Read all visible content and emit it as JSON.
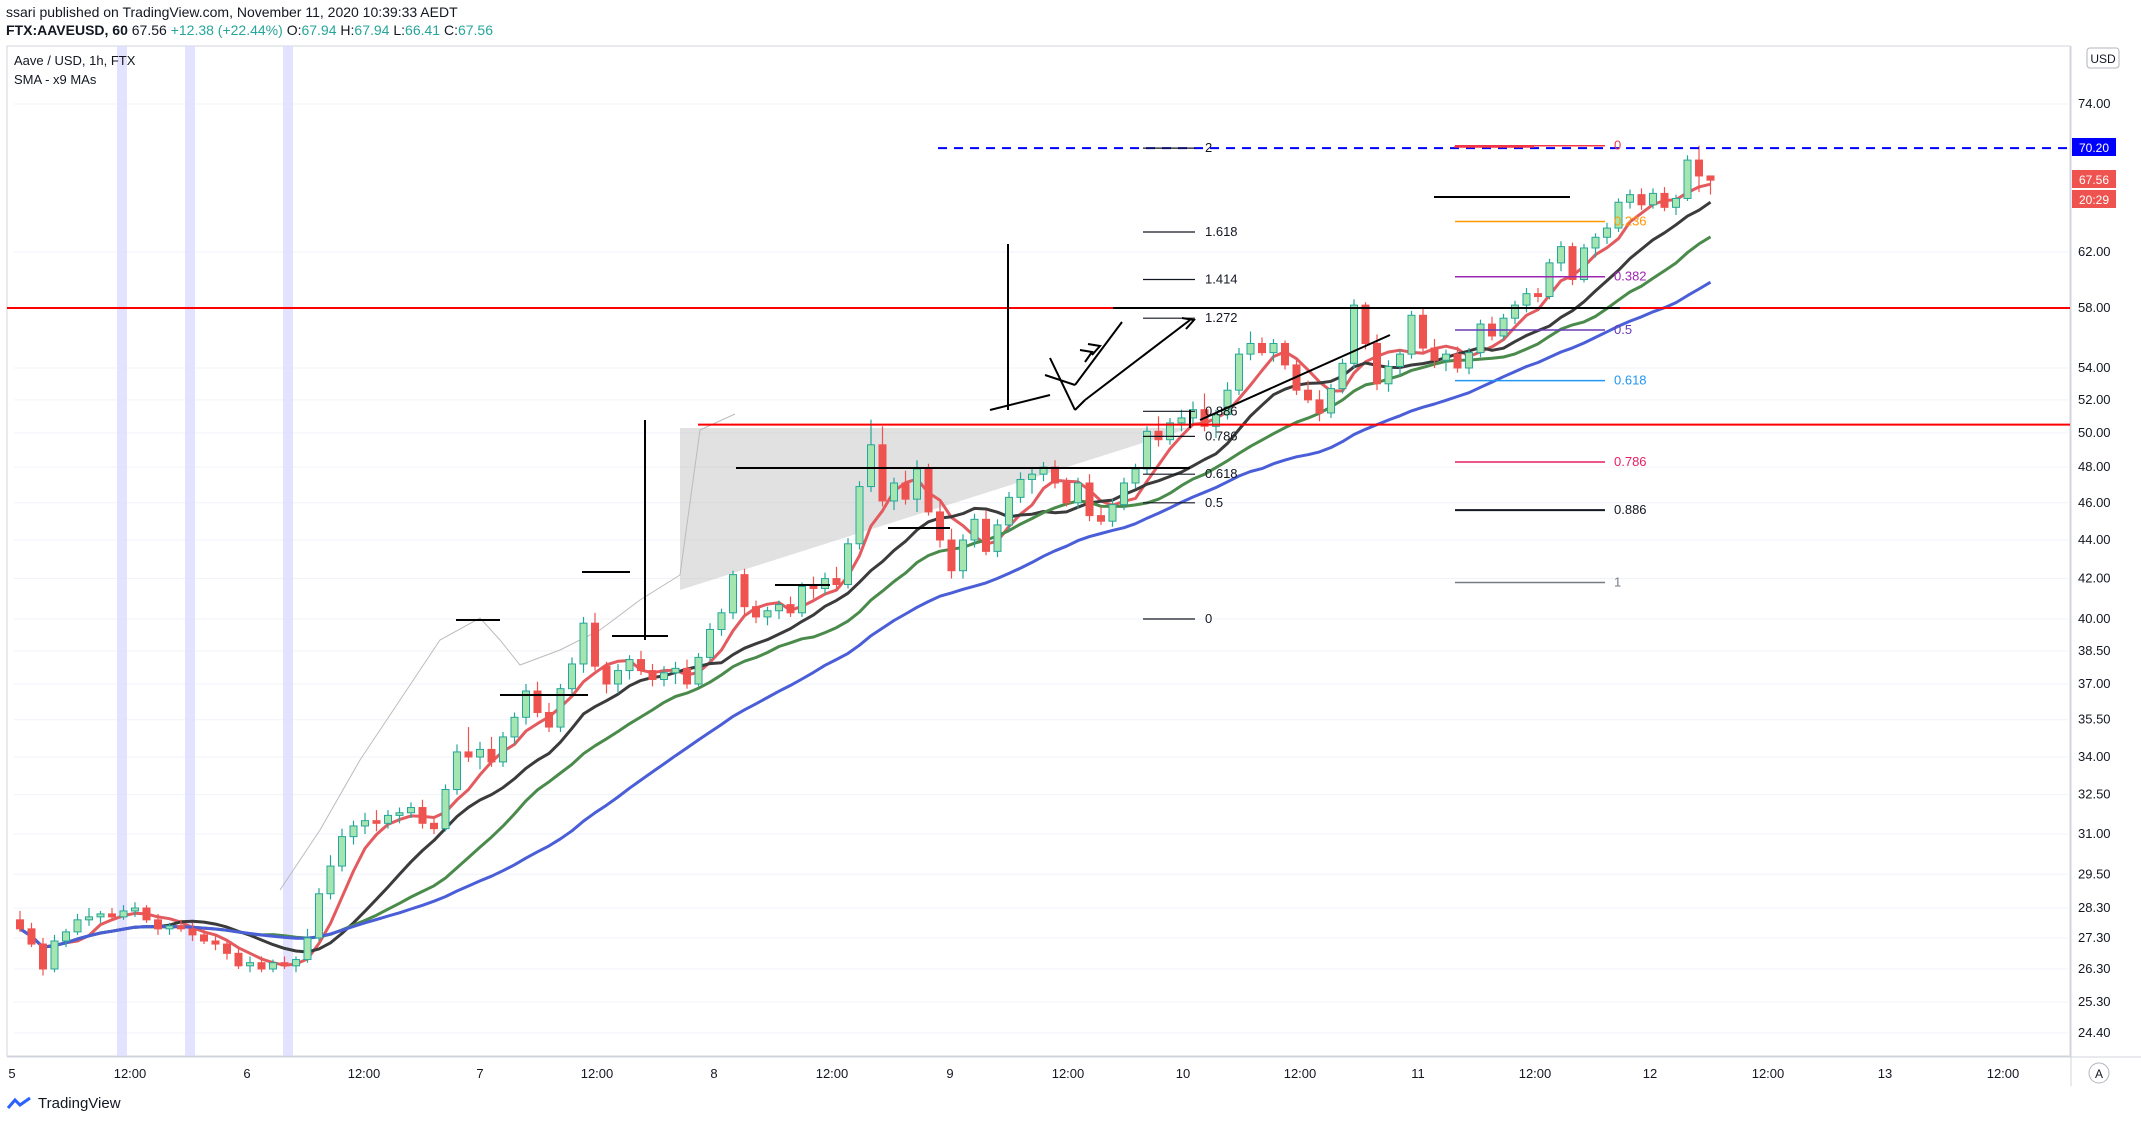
{
  "header": {
    "line1": "ssari published on TradingView.com, November 11, 2020 10:39:33 AEDT",
    "symbol": "FTX:AAVEUSD, 60",
    "last": "67.56",
    "change": "+12.38 (+22.44%)",
    "o_label": "O:",
    "o_value": "67.94",
    "h_label": "H:",
    "h_value": "67.94",
    "l_label": "L:",
    "l_value": "66.41",
    "c_label": "C:",
    "c_value": "67.56"
  },
  "legend": {
    "title": "Aave / USD, 1h, FTX",
    "indicator": "SMA - x9 MAs"
  },
  "footer": {
    "brand": "TradingView"
  },
  "price_scale": {
    "currency": "USD",
    "corner": "A"
  },
  "price_tags": [
    {
      "value": "70.20",
      "bg": "#0000ff"
    },
    {
      "value": "67.56",
      "bg": "#ef5350"
    },
    {
      "value": "20:29",
      "bg": "#ef5350"
    }
  ],
  "colors": {
    "up": "#26a69a",
    "up_fill": "#a5e6b0",
    "down": "#ef5350",
    "ma_red": "#e35b5f",
    "ma_black": "#3b3b3b",
    "ma_green": "#4a8a4a",
    "ma_blue": "#4a5ed8",
    "hline_red": "#ff0000",
    "hline_blue": "#0000ff"
  },
  "chart_data": {
    "type": "candlestick",
    "title": "Aave / USD, 1h, FTX",
    "y_ticks": [
      24.4,
      25.3,
      26.3,
      27.3,
      28.3,
      29.5,
      31.0,
      32.5,
      34.0,
      35.5,
      37.0,
      38.5,
      40.0,
      42.0,
      44.0,
      46.0,
      48.0,
      50.0,
      52.0,
      54.0,
      58.0,
      62.0,
      74.0
    ],
    "y_tick_labels": [
      "24.40",
      "25.30",
      "26.30",
      "27.30",
      "28.30",
      "29.50",
      "31.00",
      "32.50",
      "34.00",
      "35.50",
      "37.00",
      "38.50",
      "40.00",
      "42.00",
      "44.00",
      "46.00",
      "48.00",
      "50.00",
      "52.00",
      "54.00",
      "58.00",
      "62.00",
      "74.00"
    ],
    "y_scale": "log",
    "ylim": [
      24.0,
      80.0
    ],
    "x_ticks": [
      "5",
      "12:00",
      "6",
      "12:00",
      "7",
      "12:00",
      "8",
      "12:00",
      "9",
      "12:00",
      "10",
      "12:00",
      "11",
      "12:00",
      "12",
      "12:00",
      "13",
      "12:00"
    ],
    "horizontal_lines": [
      58.0,
      50.5,
      70.2
    ],
    "fib_left": {
      "levels": [
        {
          "label": "2",
          "value": 70.2
        },
        {
          "label": "1.618",
          "value": 63.5
        },
        {
          "label": "1.414",
          "value": 60.0
        },
        {
          "label": "1.272",
          "value": 57.3
        },
        {
          "label": "0.886",
          "value": 51.3
        },
        {
          "label": "0.786",
          "value": 49.8
        },
        {
          "label": "0.618",
          "value": 47.6
        },
        {
          "label": "0.5",
          "value": 46.0
        },
        {
          "label": "0",
          "value": 40.0
        }
      ]
    },
    "fib_right": {
      "levels": [
        {
          "label": "0",
          "value": 70.4,
          "color": "#f23645"
        },
        {
          "label": "0.236",
          "value": 64.3,
          "color": "#ff9800"
        },
        {
          "label": "0.382",
          "value": 60.2,
          "color": "#9c27b0"
        },
        {
          "label": "0.5",
          "value": 56.5,
          "color": "#673ab7"
        },
        {
          "label": "0.618",
          "value": 53.2,
          "color": "#2196f3"
        },
        {
          "label": "0.786",
          "value": 48.3,
          "color": "#e91e63"
        },
        {
          "label": "0.886",
          "value": 45.6,
          "color": "#131722"
        },
        {
          "label": "1",
          "value": 41.8,
          "color": "#787b86"
        }
      ]
    },
    "candles": [
      [
        27.9,
        28.2,
        27.5,
        27.6
      ],
      [
        27.6,
        27.8,
        27.0,
        27.1
      ],
      [
        27.1,
        27.3,
        26.1,
        26.3
      ],
      [
        26.3,
        27.4,
        26.2,
        27.2
      ],
      [
        27.2,
        27.6,
        27.0,
        27.5
      ],
      [
        27.5,
        28.1,
        27.4,
        27.9
      ],
      [
        27.9,
        28.3,
        27.7,
        28.0
      ],
      [
        28.0,
        28.2,
        27.8,
        28.1
      ],
      [
        28.1,
        28.3,
        27.9,
        28.0
      ],
      [
        28.0,
        28.4,
        27.9,
        28.2
      ],
      [
        28.2,
        28.5,
        28.0,
        28.3
      ],
      [
        28.3,
        28.4,
        27.8,
        27.9
      ],
      [
        27.9,
        28.1,
        27.4,
        27.6
      ],
      [
        27.6,
        27.8,
        27.4,
        27.7
      ],
      [
        27.7,
        27.9,
        27.5,
        27.6
      ],
      [
        27.6,
        27.8,
        27.2,
        27.4
      ],
      [
        27.4,
        27.6,
        27.1,
        27.2
      ],
      [
        27.2,
        27.4,
        26.9,
        27.1
      ],
      [
        27.1,
        27.2,
        26.6,
        26.8
      ],
      [
        26.8,
        27.0,
        26.3,
        26.4
      ],
      [
        26.4,
        26.7,
        26.2,
        26.5
      ],
      [
        26.5,
        26.7,
        26.2,
        26.3
      ],
      [
        26.3,
        26.6,
        26.2,
        26.5
      ],
      [
        26.5,
        26.7,
        26.3,
        26.4
      ],
      [
        26.4,
        26.7,
        26.2,
        26.6
      ],
      [
        26.6,
        27.6,
        26.5,
        27.3
      ],
      [
        27.3,
        29.0,
        27.2,
        28.8
      ],
      [
        28.8,
        30.2,
        28.6,
        29.8
      ],
      [
        29.8,
        31.2,
        29.6,
        30.9
      ],
      [
        30.9,
        31.5,
        30.6,
        31.3
      ],
      [
        31.3,
        31.8,
        31.0,
        31.5
      ],
      [
        31.5,
        31.9,
        31.1,
        31.4
      ],
      [
        31.4,
        31.9,
        31.2,
        31.7
      ],
      [
        31.7,
        32.0,
        31.4,
        31.8
      ],
      [
        31.8,
        32.2,
        31.6,
        32.0
      ],
      [
        32.0,
        32.3,
        31.2,
        31.4
      ],
      [
        31.4,
        31.6,
        31.0,
        31.2
      ],
      [
        31.2,
        32.9,
        31.1,
        32.7
      ],
      [
        32.7,
        34.5,
        32.5,
        34.2
      ],
      [
        34.2,
        35.2,
        33.8,
        34.0
      ],
      [
        34.0,
        34.6,
        33.5,
        34.3
      ],
      [
        34.3,
        34.8,
        33.6,
        33.8
      ],
      [
        33.8,
        35.0,
        33.6,
        34.8
      ],
      [
        34.8,
        35.8,
        34.5,
        35.6
      ],
      [
        35.6,
        37.0,
        35.3,
        36.7
      ],
      [
        36.7,
        37.1,
        35.6,
        35.8
      ],
      [
        35.8,
        36.2,
        35.0,
        35.2
      ],
      [
        35.2,
        37.0,
        35.0,
        36.8
      ],
      [
        36.8,
        38.2,
        36.5,
        37.9
      ],
      [
        37.9,
        40.1,
        37.5,
        39.8
      ],
      [
        39.8,
        40.3,
        37.6,
        37.8
      ],
      [
        37.8,
        38.0,
        36.6,
        37.0
      ],
      [
        37.0,
        37.9,
        36.6,
        37.6
      ],
      [
        37.6,
        38.3,
        37.2,
        38.1
      ],
      [
        38.1,
        38.5,
        37.4,
        37.6
      ],
      [
        37.6,
        37.9,
        36.9,
        37.2
      ],
      [
        37.2,
        37.8,
        36.9,
        37.5
      ],
      [
        37.5,
        38.0,
        37.0,
        37.7
      ],
      [
        37.7,
        38.1,
        36.8,
        37.0
      ],
      [
        37.0,
        38.4,
        36.9,
        38.2
      ],
      [
        38.2,
        39.8,
        38.0,
        39.5
      ],
      [
        39.5,
        40.5,
        39.2,
        40.3
      ],
      [
        40.3,
        42.4,
        40.0,
        42.2
      ],
      [
        42.2,
        42.5,
        40.2,
        40.6
      ],
      [
        40.6,
        40.9,
        39.8,
        40.1
      ],
      [
        40.1,
        40.6,
        39.7,
        40.4
      ],
      [
        40.4,
        40.9,
        40.0,
        40.7
      ],
      [
        40.7,
        41.1,
        40.1,
        40.3
      ],
      [
        40.3,
        41.8,
        40.1,
        41.6
      ],
      [
        41.6,
        42.1,
        41.0,
        41.5
      ],
      [
        41.5,
        42.3,
        41.2,
        42.0
      ],
      [
        42.0,
        42.6,
        41.4,
        41.7
      ],
      [
        41.7,
        44.1,
        41.5,
        43.8
      ],
      [
        43.8,
        47.2,
        43.5,
        46.9
      ],
      [
        46.9,
        50.8,
        46.6,
        49.3
      ],
      [
        49.3,
        50.4,
        45.8,
        46.1
      ],
      [
        46.1,
        47.4,
        45.6,
        47.1
      ],
      [
        47.1,
        47.8,
        45.9,
        46.2
      ],
      [
        46.2,
        48.4,
        45.5,
        47.9
      ],
      [
        47.9,
        48.2,
        45.3,
        45.5
      ],
      [
        45.5,
        46.2,
        43.6,
        44.0
      ],
      [
        44.0,
        44.6,
        42.0,
        42.4
      ],
      [
        42.4,
        44.3,
        42.0,
        44.0
      ],
      [
        44.0,
        45.4,
        43.6,
        45.1
      ],
      [
        45.1,
        45.6,
        43.2,
        43.4
      ],
      [
        43.4,
        45.1,
        43.1,
        44.8
      ],
      [
        44.8,
        46.6,
        44.5,
        46.3
      ],
      [
        46.3,
        47.7,
        46.0,
        47.3
      ],
      [
        47.3,
        47.9,
        46.5,
        47.6
      ],
      [
        47.6,
        48.3,
        47.2,
        48.0
      ],
      [
        48.0,
        48.4,
        46.8,
        47.1
      ],
      [
        47.1,
        47.4,
        45.8,
        46.0
      ],
      [
        46.0,
        47.4,
        45.7,
        47.1
      ],
      [
        47.1,
        47.6,
        45.0,
        45.3
      ],
      [
        45.3,
        45.8,
        44.8,
        45.0
      ],
      [
        45.0,
        46.2,
        44.7,
        45.9
      ],
      [
        45.9,
        47.4,
        45.6,
        47.1
      ],
      [
        47.1,
        48.2,
        46.8,
        47.9
      ],
      [
        47.9,
        50.4,
        47.6,
        50.1
      ],
      [
        50.1,
        51.0,
        49.2,
        49.6
      ],
      [
        49.6,
        50.9,
        49.3,
        50.6
      ],
      [
        50.6,
        51.4,
        50.1,
        50.9
      ],
      [
        50.9,
        51.9,
        50.5,
        51.4
      ],
      [
        51.4,
        52.4,
        50.1,
        50.4
      ],
      [
        50.4,
        51.4,
        49.7,
        51.1
      ],
      [
        51.1,
        53.1,
        50.8,
        52.6
      ],
      [
        52.6,
        55.3,
        52.3,
        54.9
      ],
      [
        54.9,
        56.4,
        54.5,
        55.6
      ],
      [
        55.6,
        56.0,
        54.8,
        55.0
      ],
      [
        55.0,
        55.9,
        54.4,
        55.6
      ],
      [
        55.6,
        55.8,
        53.9,
        54.2
      ],
      [
        54.2,
        54.5,
        52.3,
        52.6
      ],
      [
        52.6,
        53.2,
        51.8,
        52.0
      ],
      [
        52.0,
        52.6,
        50.7,
        51.2
      ],
      [
        51.2,
        53.0,
        50.9,
        52.7
      ],
      [
        52.7,
        54.6,
        52.4,
        54.3
      ],
      [
        54.3,
        58.6,
        54.0,
        58.2
      ],
      [
        58.2,
        58.4,
        55.2,
        55.6
      ],
      [
        55.6,
        56.2,
        52.6,
        53.0
      ],
      [
        53.0,
        54.5,
        52.5,
        54.1
      ],
      [
        54.1,
        55.2,
        53.5,
        54.9
      ],
      [
        54.9,
        57.8,
        54.6,
        57.5
      ],
      [
        57.5,
        58.0,
        55.0,
        55.3
      ],
      [
        55.3,
        55.9,
        54.0,
        54.5
      ],
      [
        54.5,
        55.2,
        53.8,
        54.9
      ],
      [
        54.9,
        55.4,
        53.7,
        54.0
      ],
      [
        54.0,
        55.3,
        53.6,
        55.0
      ],
      [
        55.0,
        57.2,
        54.7,
        56.9
      ],
      [
        56.9,
        57.4,
        55.8,
        56.1
      ],
      [
        56.1,
        57.6,
        55.8,
        57.3
      ],
      [
        57.3,
        58.5,
        56.9,
        58.2
      ],
      [
        58.2,
        59.4,
        57.7,
        59.0
      ],
      [
        59.0,
        59.4,
        58.4,
        58.8
      ],
      [
        58.8,
        61.5,
        58.6,
        61.2
      ],
      [
        61.2,
        62.8,
        60.6,
        62.4
      ],
      [
        62.4,
        62.7,
        59.6,
        60.0
      ],
      [
        60.0,
        62.6,
        59.8,
        62.3
      ],
      [
        62.3,
        63.4,
        61.6,
        63.1
      ],
      [
        63.1,
        64.2,
        62.6,
        63.8
      ],
      [
        63.8,
        66.1,
        63.5,
        65.8
      ],
      [
        65.8,
        66.8,
        65.3,
        66.4
      ],
      [
        66.4,
        66.9,
        65.2,
        65.6
      ],
      [
        65.6,
        66.9,
        65.3,
        66.5
      ],
      [
        66.5,
        67.0,
        65.1,
        65.4
      ],
      [
        65.4,
        66.4,
        64.8,
        66.1
      ],
      [
        66.1,
        69.6,
        65.9,
        69.2
      ],
      [
        69.2,
        70.4,
        66.6,
        67.9
      ],
      [
        67.9,
        67.94,
        66.41,
        67.56
      ]
    ]
  }
}
